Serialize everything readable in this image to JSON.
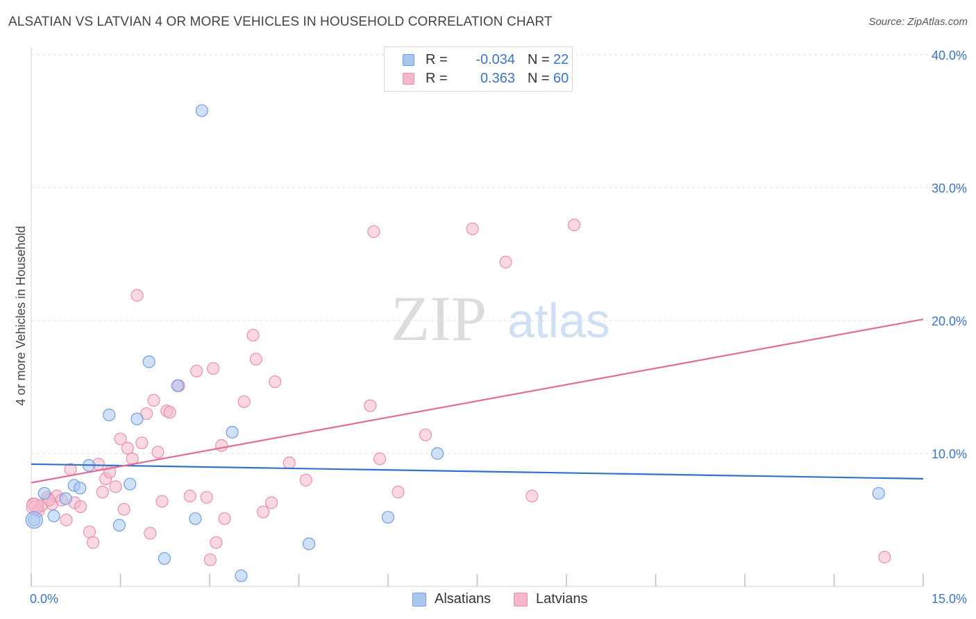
{
  "header": {
    "title": "ALSATIAN VS LATVIAN 4 OR MORE VEHICLES IN HOUSEHOLD CORRELATION CHART",
    "source": "Source: ZipAtlas.com"
  },
  "watermark": {
    "zip": "ZIP",
    "atlas": "atlas"
  },
  "legend": {
    "rows": [
      {
        "r_label": "R =",
        "r_value": "-0.034",
        "n_label": "N =",
        "n_value": "22",
        "color": "#a9c6f0"
      },
      {
        "r_label": "R =",
        "r_value": "0.363",
        "n_label": "N =",
        "n_value": "60",
        "color": "#f5b8cb"
      }
    ]
  },
  "bottom_legend": {
    "alsatians": "Alsatians",
    "latvians": "Latvians"
  },
  "colors": {
    "alsatian_fill": "#a9c6f0",
    "alsatian_stroke": "#6f9ee0",
    "alsatian_line": "#2f72c8",
    "latvian_fill": "#f5b8cb",
    "latvian_stroke": "#ea8fae",
    "latvian_line": "#e26c97",
    "tick_text": "#3d73c5",
    "grid": "#e2e2e2"
  },
  "chart_data": {
    "type": "scatter",
    "title": "ALSATIAN VS LATVIAN 4 OR MORE VEHICLES IN HOUSEHOLD CORRELATION CHART",
    "xlabel": "",
    "ylabel": "4 or more Vehicles in Household",
    "xlim": [
      0,
      15
    ],
    "ylim": [
      0,
      40
    ],
    "x_tick_labels": [
      {
        "value": 0,
        "label": "0.0%"
      },
      {
        "value": 15,
        "label": "15.0%"
      }
    ],
    "y_tick_labels": [
      {
        "value": 10,
        "label": "10.0%"
      },
      {
        "value": 20,
        "label": "20.0%"
      },
      {
        "value": 30,
        "label": "30.0%"
      },
      {
        "value": 40,
        "label": "40.0%"
      }
    ],
    "series": [
      {
        "name": "Alsatians",
        "r": -0.034,
        "n": 22,
        "trend": [
          [
            0,
            9.2
          ],
          [
            15,
            8.1
          ]
        ],
        "points": [
          [
            0.05,
            5.0
          ],
          [
            0.22,
            7.0
          ],
          [
            0.38,
            5.3
          ],
          [
            0.58,
            6.6
          ],
          [
            0.72,
            7.6
          ],
          [
            0.82,
            7.4
          ],
          [
            0.97,
            9.1
          ],
          [
            1.31,
            12.9
          ],
          [
            1.48,
            4.6
          ],
          [
            1.66,
            7.7
          ],
          [
            1.78,
            12.6
          ],
          [
            1.98,
            16.9
          ],
          [
            2.24,
            2.1
          ],
          [
            2.46,
            15.1
          ],
          [
            2.76,
            5.1
          ],
          [
            2.87,
            35.8
          ],
          [
            3.38,
            11.6
          ],
          [
            3.53,
            0.8
          ],
          [
            4.67,
            3.2
          ],
          [
            6.0,
            5.2
          ],
          [
            6.83,
            10.0
          ],
          [
            14.25,
            7.0
          ]
        ]
      },
      {
        "name": "Latvians",
        "r": 0.363,
        "n": 60,
        "trend": [
          [
            0,
            7.8
          ],
          [
            15,
            20.1
          ]
        ],
        "points": [
          [
            0.03,
            6.2
          ],
          [
            0.12,
            5.7
          ],
          [
            0.18,
            6.1
          ],
          [
            0.27,
            6.7
          ],
          [
            0.35,
            6.2
          ],
          [
            0.43,
            6.8
          ],
          [
            0.51,
            6.5
          ],
          [
            0.59,
            5.0
          ],
          [
            0.66,
            8.8
          ],
          [
            0.73,
            6.3
          ],
          [
            0.83,
            6.0
          ],
          [
            0.98,
            4.1
          ],
          [
            1.04,
            3.3
          ],
          [
            1.13,
            9.2
          ],
          [
            1.2,
            7.1
          ],
          [
            1.25,
            8.1
          ],
          [
            1.32,
            8.6
          ],
          [
            1.42,
            7.5
          ],
          [
            1.5,
            11.1
          ],
          [
            1.56,
            5.8
          ],
          [
            1.62,
            10.4
          ],
          [
            1.7,
            9.6
          ],
          [
            1.78,
            21.9
          ],
          [
            1.86,
            10.8
          ],
          [
            1.94,
            13.0
          ],
          [
            2.0,
            4.0
          ],
          [
            2.06,
            14.0
          ],
          [
            2.13,
            10.1
          ],
          [
            2.2,
            6.4
          ],
          [
            2.28,
            13.2
          ],
          [
            2.33,
            13.1
          ],
          [
            2.48,
            15.1
          ],
          [
            2.67,
            6.8
          ],
          [
            2.78,
            16.2
          ],
          [
            2.95,
            6.7
          ],
          [
            3.01,
            2.0
          ],
          [
            3.06,
            16.4
          ],
          [
            3.11,
            3.3
          ],
          [
            3.2,
            10.6
          ],
          [
            3.25,
            5.1
          ],
          [
            3.58,
            13.9
          ],
          [
            3.73,
            18.9
          ],
          [
            3.78,
            17.1
          ],
          [
            3.9,
            5.6
          ],
          [
            4.04,
            6.3
          ],
          [
            4.1,
            15.4
          ],
          [
            4.34,
            9.3
          ],
          [
            4.62,
            8.0
          ],
          [
            5.7,
            13.6
          ],
          [
            5.76,
            26.7
          ],
          [
            5.86,
            9.6
          ],
          [
            6.17,
            7.1
          ],
          [
            6.63,
            11.4
          ],
          [
            7.42,
            26.9
          ],
          [
            7.98,
            24.4
          ],
          [
            8.42,
            6.8
          ],
          [
            9.13,
            27.2
          ],
          [
            14.35,
            2.2
          ],
          [
            0.06,
            6.0
          ],
          [
            0.3,
            6.5
          ]
        ]
      }
    ]
  }
}
